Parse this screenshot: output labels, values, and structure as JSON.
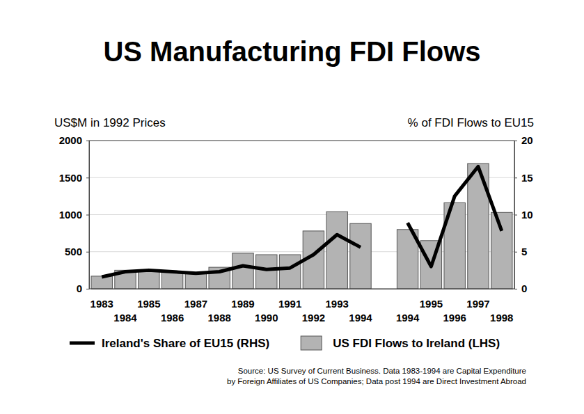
{
  "chart_data": {
    "type": "bar",
    "title": "US Manufacturing FDI Flows",
    "y_label": "US$M in 1992 Prices",
    "y2_label": "% of FDI Flows to EU15",
    "annotations": [
      "Source: US Survey of Current Business. Data 1983-1994 are Capital Expenditure",
      "by Foreign Affiliates of US Companies; Data post 1994 are Direct Investment Abroad"
    ],
    "categories": [
      "1983",
      "1984",
      "1985",
      "1986",
      "1987",
      "1988",
      "1989",
      "1990",
      "1991",
      "1992",
      "1993",
      "1994",
      null,
      "1994",
      "1995",
      "1996",
      "1997",
      "1998"
    ],
    "series": [
      {
        "name": "Ireland's Share of EU15 (RHS)",
        "type": "line",
        "axis": "y2",
        "color": "#000000",
        "values": [
          1.6,
          2.3,
          2.5,
          2.3,
          2.1,
          2.3,
          3.1,
          2.6,
          2.8,
          4.6,
          7.3,
          5.6,
          null,
          8.9,
          3.0,
          12.5,
          16.5,
          7.8
        ]
      },
      {
        "name": "US FDI Flows to Ireland (LHS)",
        "type": "bar",
        "color": "#b3b3b3",
        "values": [
          170,
          250,
          250,
          230,
          220,
          290,
          480,
          460,
          460,
          780,
          1040,
          880,
          null,
          800,
          650,
          1160,
          1690,
          1030
        ]
      }
    ],
    "ylim": [
      0,
      2000
    ],
    "yticks": [
      0,
      500,
      1000,
      1500,
      2000
    ],
    "y2lim": [
      0,
      20
    ],
    "y2ticks": [
      0,
      5,
      10,
      15,
      20
    ],
    "grid": true,
    "legend": "bottom"
  }
}
